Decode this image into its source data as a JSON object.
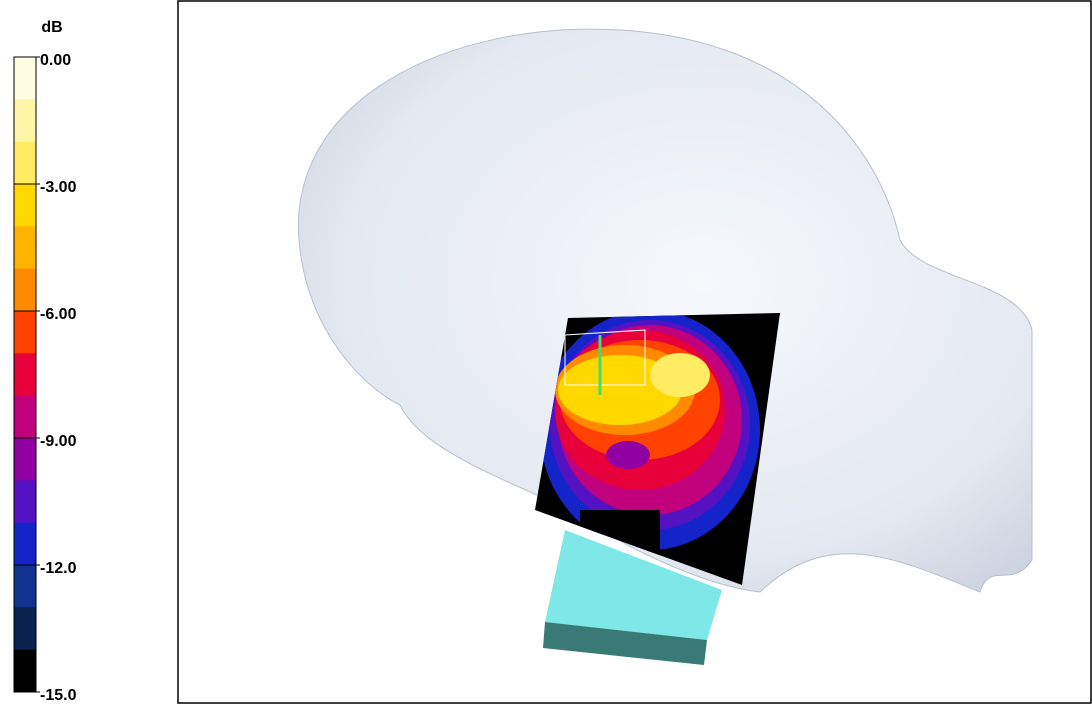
{
  "chart_data": {
    "type": "colorbar",
    "unit": "dB",
    "ylim": [
      -15,
      0
    ],
    "yticks": [
      {
        "value": 0,
        "label": "0.00"
      },
      {
        "value": -3,
        "label": "-3.00"
      },
      {
        "value": -6,
        "label": "-6.00"
      },
      {
        "value": -9,
        "label": "-9.00"
      },
      {
        "value": -12,
        "label": "-12.0"
      },
      {
        "value": -15,
        "label": "-15.0"
      }
    ],
    "colors": [
      "#fffde2",
      "#fff7a8",
      "#ffec62",
      "#ffd800",
      "#ffb400",
      "#ff8a00",
      "#ff4200",
      "#e8003a",
      "#c0007c",
      "#9000a2",
      "#5412c2",
      "#1424c8",
      "#10348e",
      "#0a2250",
      "#000000"
    ]
  }
}
